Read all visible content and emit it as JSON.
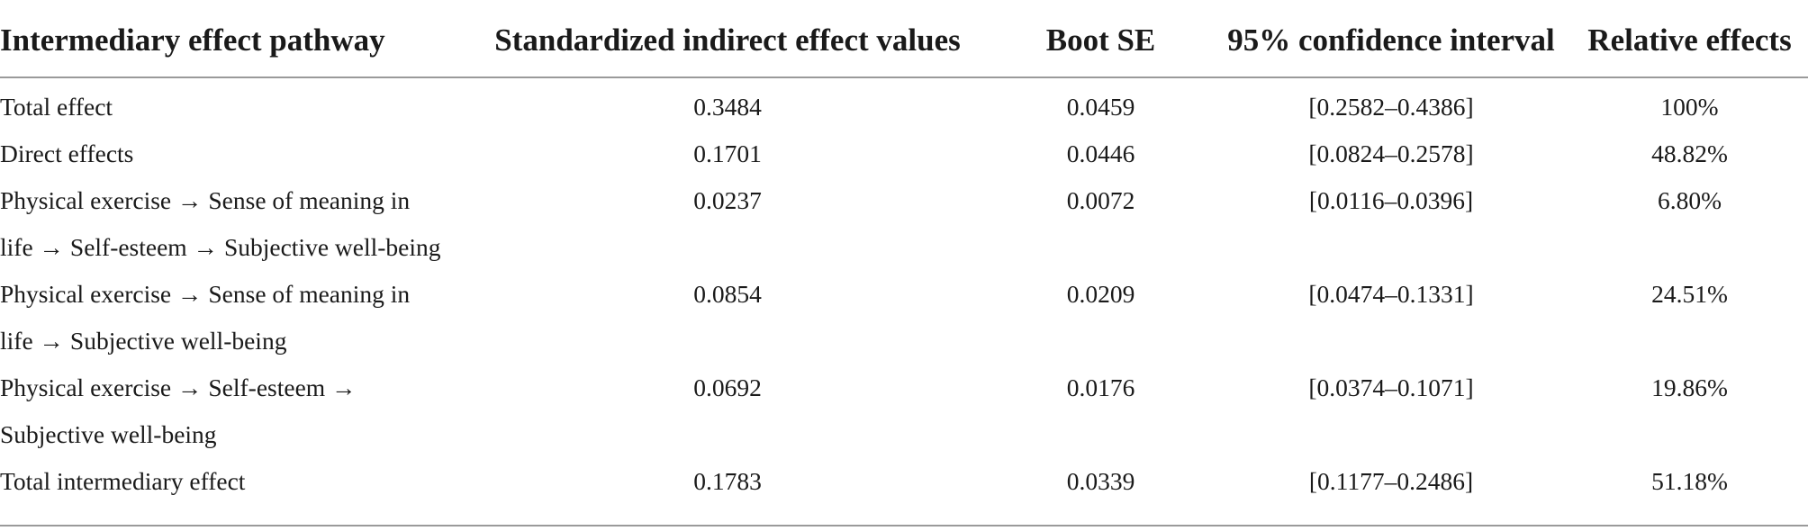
{
  "table": {
    "headers": [
      "Intermediary effect pathway",
      "Standardized indirect effect values",
      "Boot SE",
      "95% confidence interval",
      "Relative effects"
    ],
    "rows": [
      {
        "pathway": "Total effect",
        "indirect": "0.3484",
        "boot_se": "0.0459",
        "ci": "[0.2582–0.4386]",
        "relative": "100%"
      },
      {
        "pathway": "Direct effects",
        "indirect": "0.1701",
        "boot_se": "0.0446",
        "ci": "[0.0824–0.2578]",
        "relative": "48.82%"
      },
      {
        "pathway": "Physical exercise → Sense of meaning in life → Self-esteem → Subjective well-being",
        "indirect": "0.0237",
        "boot_se": "0.0072",
        "ci": "[0.0116–0.0396]",
        "relative": "6.80%"
      },
      {
        "pathway": "Physical exercise → Sense of meaning in life → Subjective well-being",
        "indirect": "0.0854",
        "boot_se": "0.0209",
        "ci": "[0.0474–0.1331]",
        "relative": "24.51%"
      },
      {
        "pathway": "Physical exercise → Self-esteem → Subjective well-being",
        "indirect": "0.0692",
        "boot_se": "0.0176",
        "ci": "[0.0374–0.1071]",
        "relative": "19.86%"
      },
      {
        "pathway": "Total intermediary effect",
        "indirect": "0.1783",
        "boot_se": "0.0339",
        "ci": "[0.1177–0.2486]",
        "relative": "51.18%"
      }
    ]
  }
}
